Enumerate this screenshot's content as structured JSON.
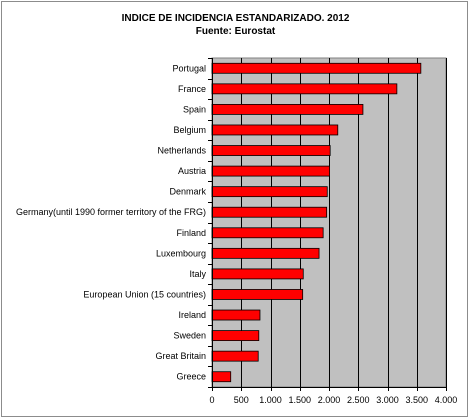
{
  "chart_data": {
    "type": "bar",
    "orientation": "horizontal",
    "title": "INDICE DE INCIDENCIA ESTANDARIZADO. 2012",
    "subtitle": "Fuente: Eurostat",
    "xlabel": "",
    "ylabel": "",
    "xlim": [
      0,
      4000
    ],
    "xticks": [
      "0",
      "500",
      "1.000",
      "1.500",
      "2.000",
      "2.500",
      "3.000",
      "3.500",
      "4.000"
    ],
    "xtick_values": [
      0,
      500,
      1000,
      1500,
      2000,
      2500,
      3000,
      3500,
      4000
    ],
    "grid": "vertical",
    "legend": "none",
    "categories": [
      "Portugal",
      "France",
      "Spain",
      "Belgium",
      "Netherlands",
      "Austria",
      "Denmark",
      "Germany(until 1990 former territory of the FRG)",
      "Finland",
      "Luxembourg",
      "Italy",
      "European Union (15 countries)",
      "Ireland",
      "Sweden",
      "Great Britain",
      "Greece"
    ],
    "values": [
      3570,
      3160,
      2580,
      2150,
      2020,
      2010,
      1970,
      1960,
      1900,
      1830,
      1560,
      1550,
      820,
      800,
      790,
      320
    ],
    "colors": {
      "bar_fill": "#ff0000",
      "bar_stroke": "#000000",
      "plot_background": "#c0c0c0",
      "gridline": "#000000"
    }
  }
}
